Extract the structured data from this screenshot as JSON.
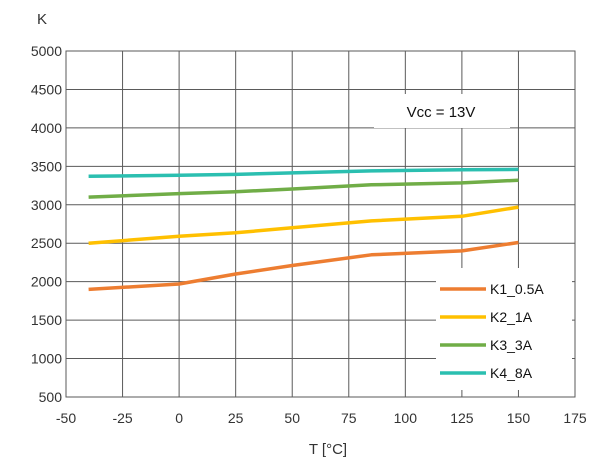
{
  "chart_data": {
    "type": "line",
    "ylabel": "K",
    "xlabel": "T [°C]",
    "annotation": "Vcc = 13V",
    "xlim": [
      -50,
      175
    ],
    "ylim": [
      500,
      5000
    ],
    "x_ticks": [
      -50,
      -25,
      0,
      25,
      50,
      75,
      100,
      125,
      150,
      175
    ],
    "y_ticks": [
      500,
      1000,
      1500,
      2000,
      2500,
      3000,
      3500,
      4000,
      4500,
      5000
    ],
    "grid": true,
    "legend_position": "lower-right",
    "series": [
      {
        "name": "K1_0.5A",
        "color": "#ed7d31",
        "x": [
          -40,
          0,
          25,
          50,
          85,
          125,
          150
        ],
        "y": [
          1900,
          1970,
          2100,
          2210,
          2350,
          2400,
          2510
        ]
      },
      {
        "name": "K2_1A",
        "color": "#ffc000",
        "x": [
          -40,
          0,
          25,
          50,
          85,
          125,
          150
        ],
        "y": [
          2500,
          2590,
          2635,
          2700,
          2790,
          2850,
          2970
        ]
      },
      {
        "name": "K3_3A",
        "color": "#70ad47",
        "x": [
          -40,
          0,
          25,
          50,
          85,
          125,
          150
        ],
        "y": [
          3100,
          3145,
          3170,
          3205,
          3260,
          3285,
          3320
        ]
      },
      {
        "name": "K4_8A",
        "color": "#2bbfb0",
        "x": [
          -40,
          0,
          25,
          50,
          85,
          125,
          150
        ],
        "y": [
          3370,
          3385,
          3395,
          3415,
          3440,
          3455,
          3460
        ]
      }
    ]
  }
}
